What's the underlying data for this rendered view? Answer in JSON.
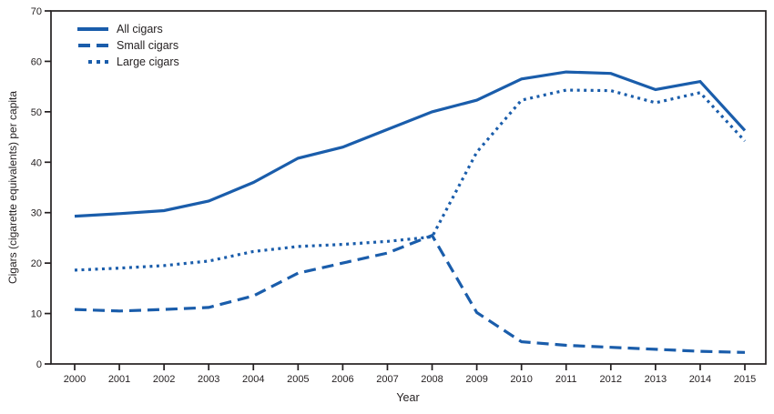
{
  "figure": {
    "xlabel": "Year",
    "ylabel": "Cigars (cigarette equivalents) per capita"
  },
  "chart_data": {
    "type": "line",
    "title": "",
    "xlabel": "Year",
    "ylabel": "Cigars (cigarette equivalents) per capita",
    "x": [
      2000,
      2001,
      2002,
      2003,
      2004,
      2005,
      2006,
      2007,
      2008,
      2009,
      2010,
      2011,
      2012,
      2013,
      2014,
      2015
    ],
    "series": [
      {
        "name": "All cigars",
        "style": "solid",
        "values": [
          29.3,
          29.8,
          30.4,
          32.3,
          36.0,
          40.8,
          43.0,
          46.5,
          50.0,
          52.3,
          56.5,
          57.9,
          57.6,
          54.4,
          56.0,
          46.3
        ]
      },
      {
        "name": "Small cigars",
        "style": "dashed",
        "values": [
          10.8,
          10.5,
          10.8,
          11.2,
          13.5,
          18.0,
          20.0,
          22.0,
          25.5,
          10.2,
          4.4,
          3.7,
          3.3,
          2.9,
          2.5,
          2.3
        ]
      },
      {
        "name": "Large cigars",
        "style": "dotted",
        "values": [
          18.6,
          19.0,
          19.5,
          20.4,
          22.3,
          23.3,
          23.7,
          24.3,
          25.2,
          42.0,
          52.3,
          54.3,
          54.2,
          51.8,
          53.8,
          44.2
        ]
      }
    ],
    "ylim": [
      0,
      70
    ],
    "yticks": [
      0,
      10,
      20,
      30,
      40,
      50,
      60,
      70
    ],
    "grid": false,
    "legend_position": "top-left",
    "line_color": "#1a5dab",
    "axis_color": "#231f20"
  }
}
